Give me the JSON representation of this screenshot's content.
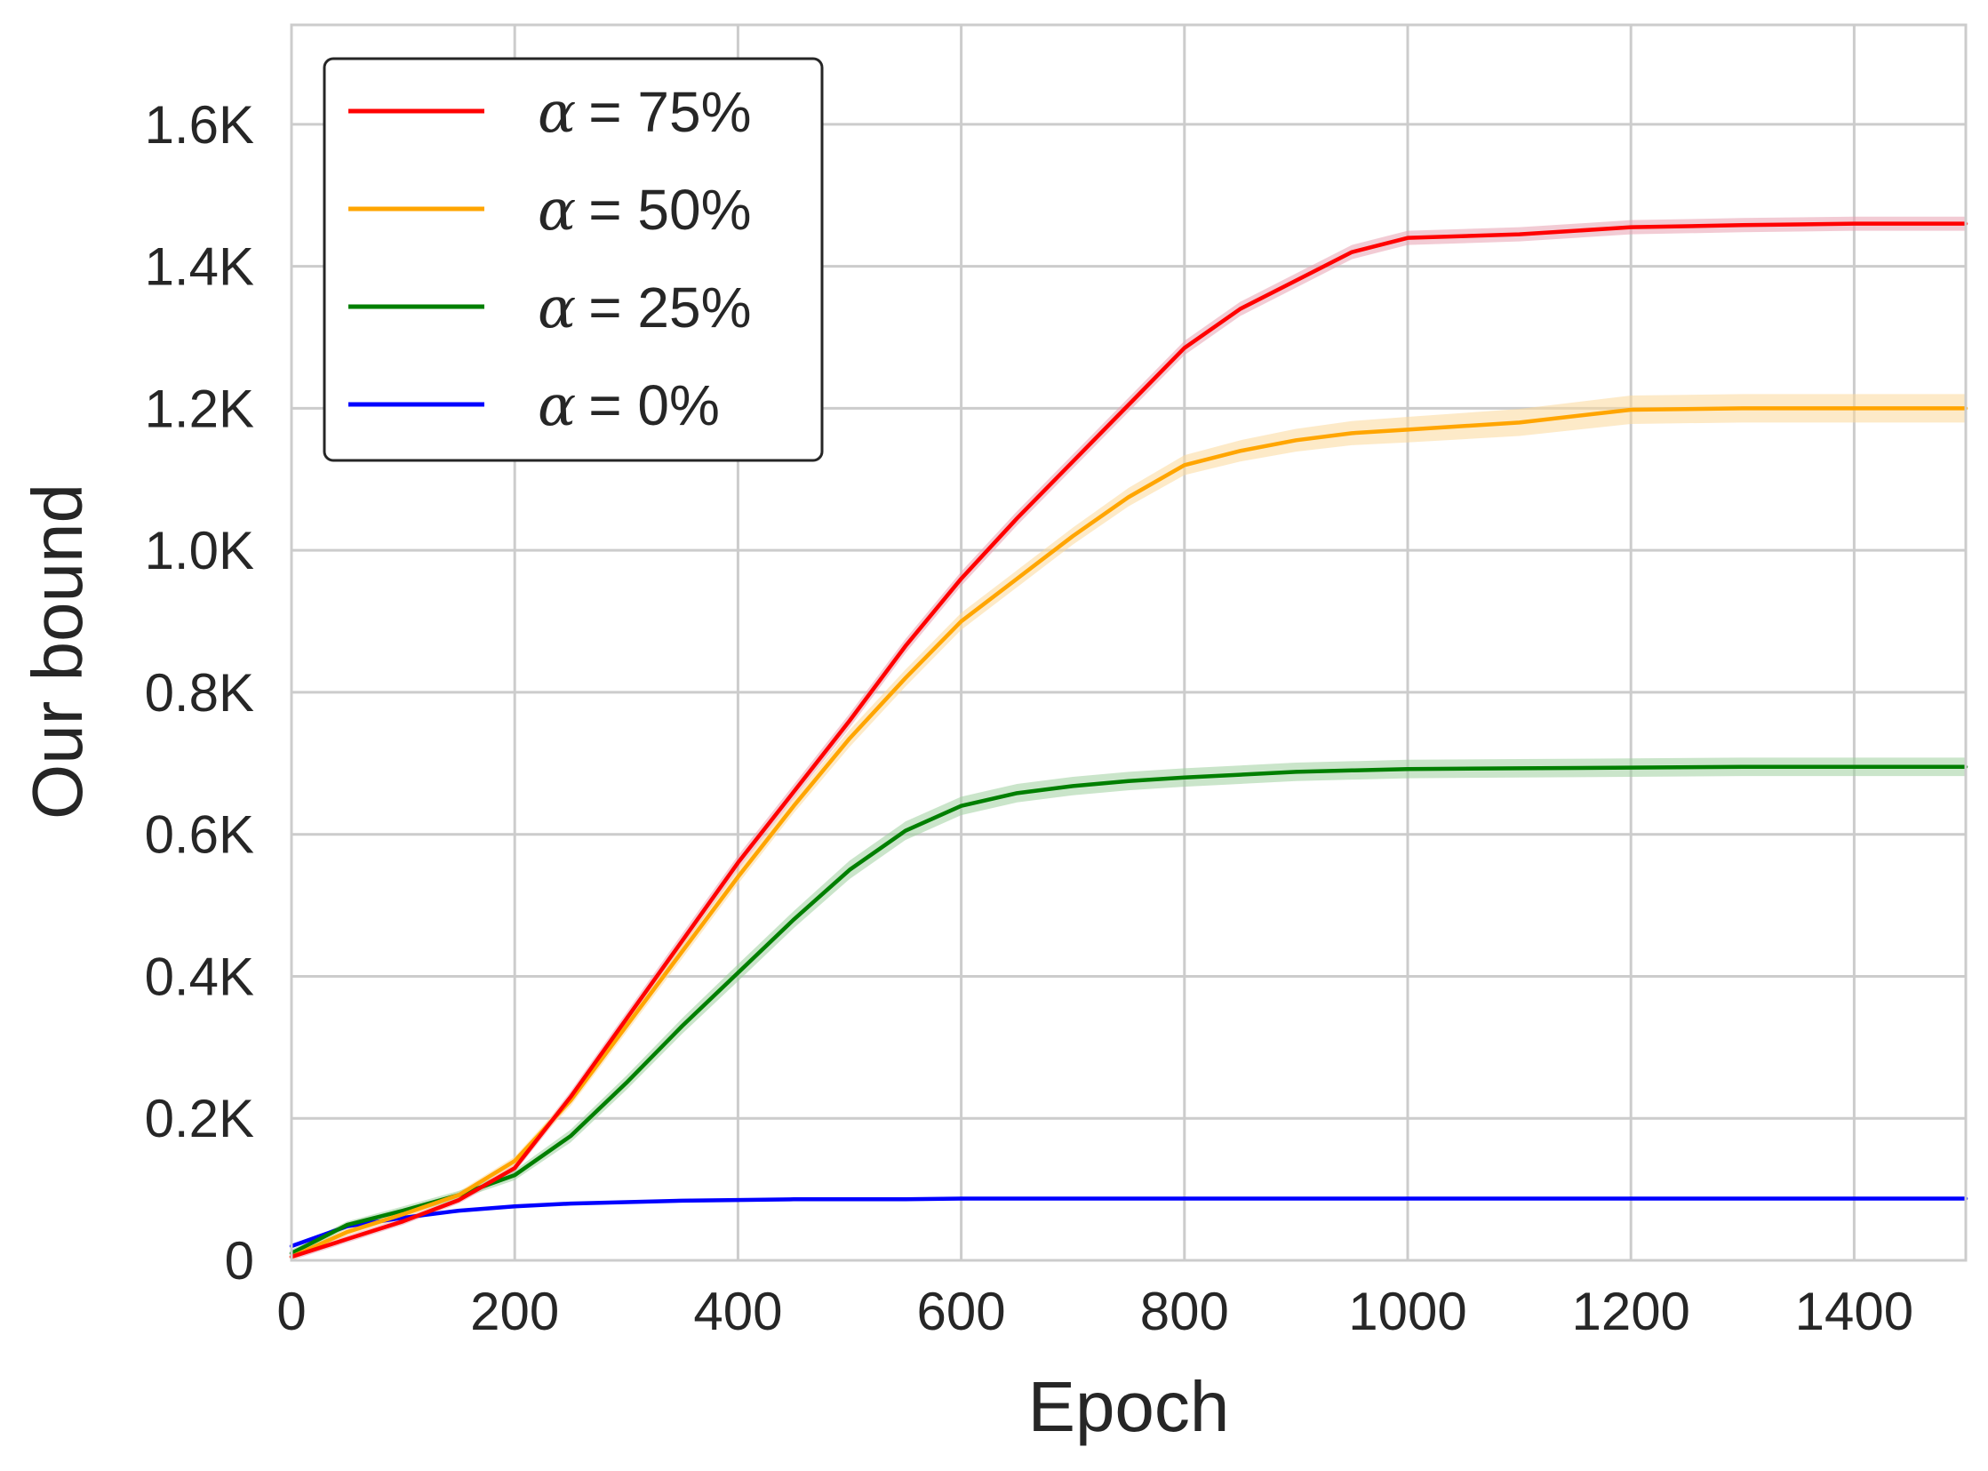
{
  "chart_data": {
    "type": "line",
    "title": "",
    "xlabel": "Epoch",
    "ylabel": "Our bound",
    "xlim": [
      0,
      1500
    ],
    "ylim": [
      0,
      1740
    ],
    "xticks": [
      0,
      200,
      400,
      600,
      800,
      1000,
      1200,
      1400
    ],
    "xtick_labels": [
      "0",
      "200",
      "400",
      "600",
      "800",
      "1000",
      "1200",
      "1400"
    ],
    "yticks": [
      0,
      200,
      400,
      600,
      800,
      1000,
      1200,
      1400,
      1600
    ],
    "ytick_labels": [
      "0",
      "0.2K",
      "0.4K",
      "0.6K",
      "0.8K",
      "1.0K",
      "1.2K",
      "1.4K",
      "1.6K"
    ],
    "grid": true,
    "legend_position": "top-left",
    "x": [
      0,
      50,
      100,
      150,
      200,
      250,
      300,
      350,
      400,
      450,
      500,
      550,
      600,
      650,
      700,
      750,
      800,
      850,
      900,
      950,
      1000,
      1100,
      1200,
      1300,
      1400,
      1500
    ],
    "series": [
      {
        "name": "α = 75%",
        "legend_alpha": "α",
        "legend_value": "= 75%",
        "color": "#ff0000",
        "band_color": "#e8a0b0",
        "values": [
          5,
          30,
          55,
          85,
          130,
          230,
          340,
          450,
          560,
          660,
          760,
          865,
          960,
          1045,
          1125,
          1205,
          1285,
          1340,
          1380,
          1420,
          1440,
          1445,
          1455,
          1458,
          1460,
          1460
        ],
        "band": [
          5,
          5,
          5,
          5,
          6,
          8,
          9,
          10,
          10,
          10,
          10,
          10,
          10,
          10,
          10,
          10,
          10,
          10,
          10,
          10,
          10,
          10,
          10,
          10,
          10,
          10
        ]
      },
      {
        "name": "α = 50%",
        "legend_alpha": "α",
        "legend_value": "= 50%",
        "color": "#ffa500",
        "band_color": "#fbd99a",
        "values": [
          5,
          40,
          65,
          92,
          140,
          225,
          330,
          435,
          540,
          640,
          735,
          820,
          900,
          960,
          1020,
          1075,
          1120,
          1140,
          1155,
          1165,
          1170,
          1180,
          1198,
          1200,
          1200,
          1200
        ],
        "band": [
          5,
          5,
          5,
          5,
          6,
          8,
          9,
          10,
          10,
          10,
          12,
          12,
          12,
          12,
          12,
          13,
          14,
          15,
          16,
          17,
          18,
          19,
          20,
          20,
          20,
          20
        ]
      },
      {
        "name": "α = 25%",
        "legend_alpha": "α",
        "legend_value": "= 25%",
        "color": "#007f00",
        "band_color": "#9fd09f",
        "values": [
          10,
          50,
          70,
          92,
          120,
          175,
          250,
          330,
          405,
          480,
          550,
          605,
          640,
          658,
          668,
          675,
          680,
          684,
          688,
          690,
          692,
          693,
          694,
          695,
          695,
          695
        ],
        "band": [
          5,
          5,
          6,
          6,
          7,
          9,
          10,
          11,
          12,
          12,
          13,
          13,
          13,
          13,
          13,
          13,
          13,
          13,
          13,
          13,
          13,
          13,
          13,
          13,
          13,
          13
        ]
      },
      {
        "name": "α = 0%",
        "legend_alpha": "α",
        "legend_value": "= 0%",
        "color": "#0000ff",
        "band_color": "#9fa0ff",
        "values": [
          20,
          48,
          60,
          70,
          76,
          80,
          82,
          84,
          85,
          86,
          86,
          86,
          87,
          87,
          87,
          87,
          87,
          87,
          87,
          87,
          87,
          87,
          87,
          87,
          87,
          87
        ],
        "band": [
          2,
          2,
          2,
          2,
          2,
          2,
          2,
          2,
          2,
          2,
          2,
          2,
          2,
          2,
          2,
          2,
          2,
          2,
          2,
          2,
          2,
          2,
          2,
          2,
          2,
          2
        ]
      }
    ]
  },
  "colors": {
    "grid": "#cccccc",
    "axes_frame": "#cccccc",
    "text": "#262626",
    "legend_border": "#262626"
  }
}
